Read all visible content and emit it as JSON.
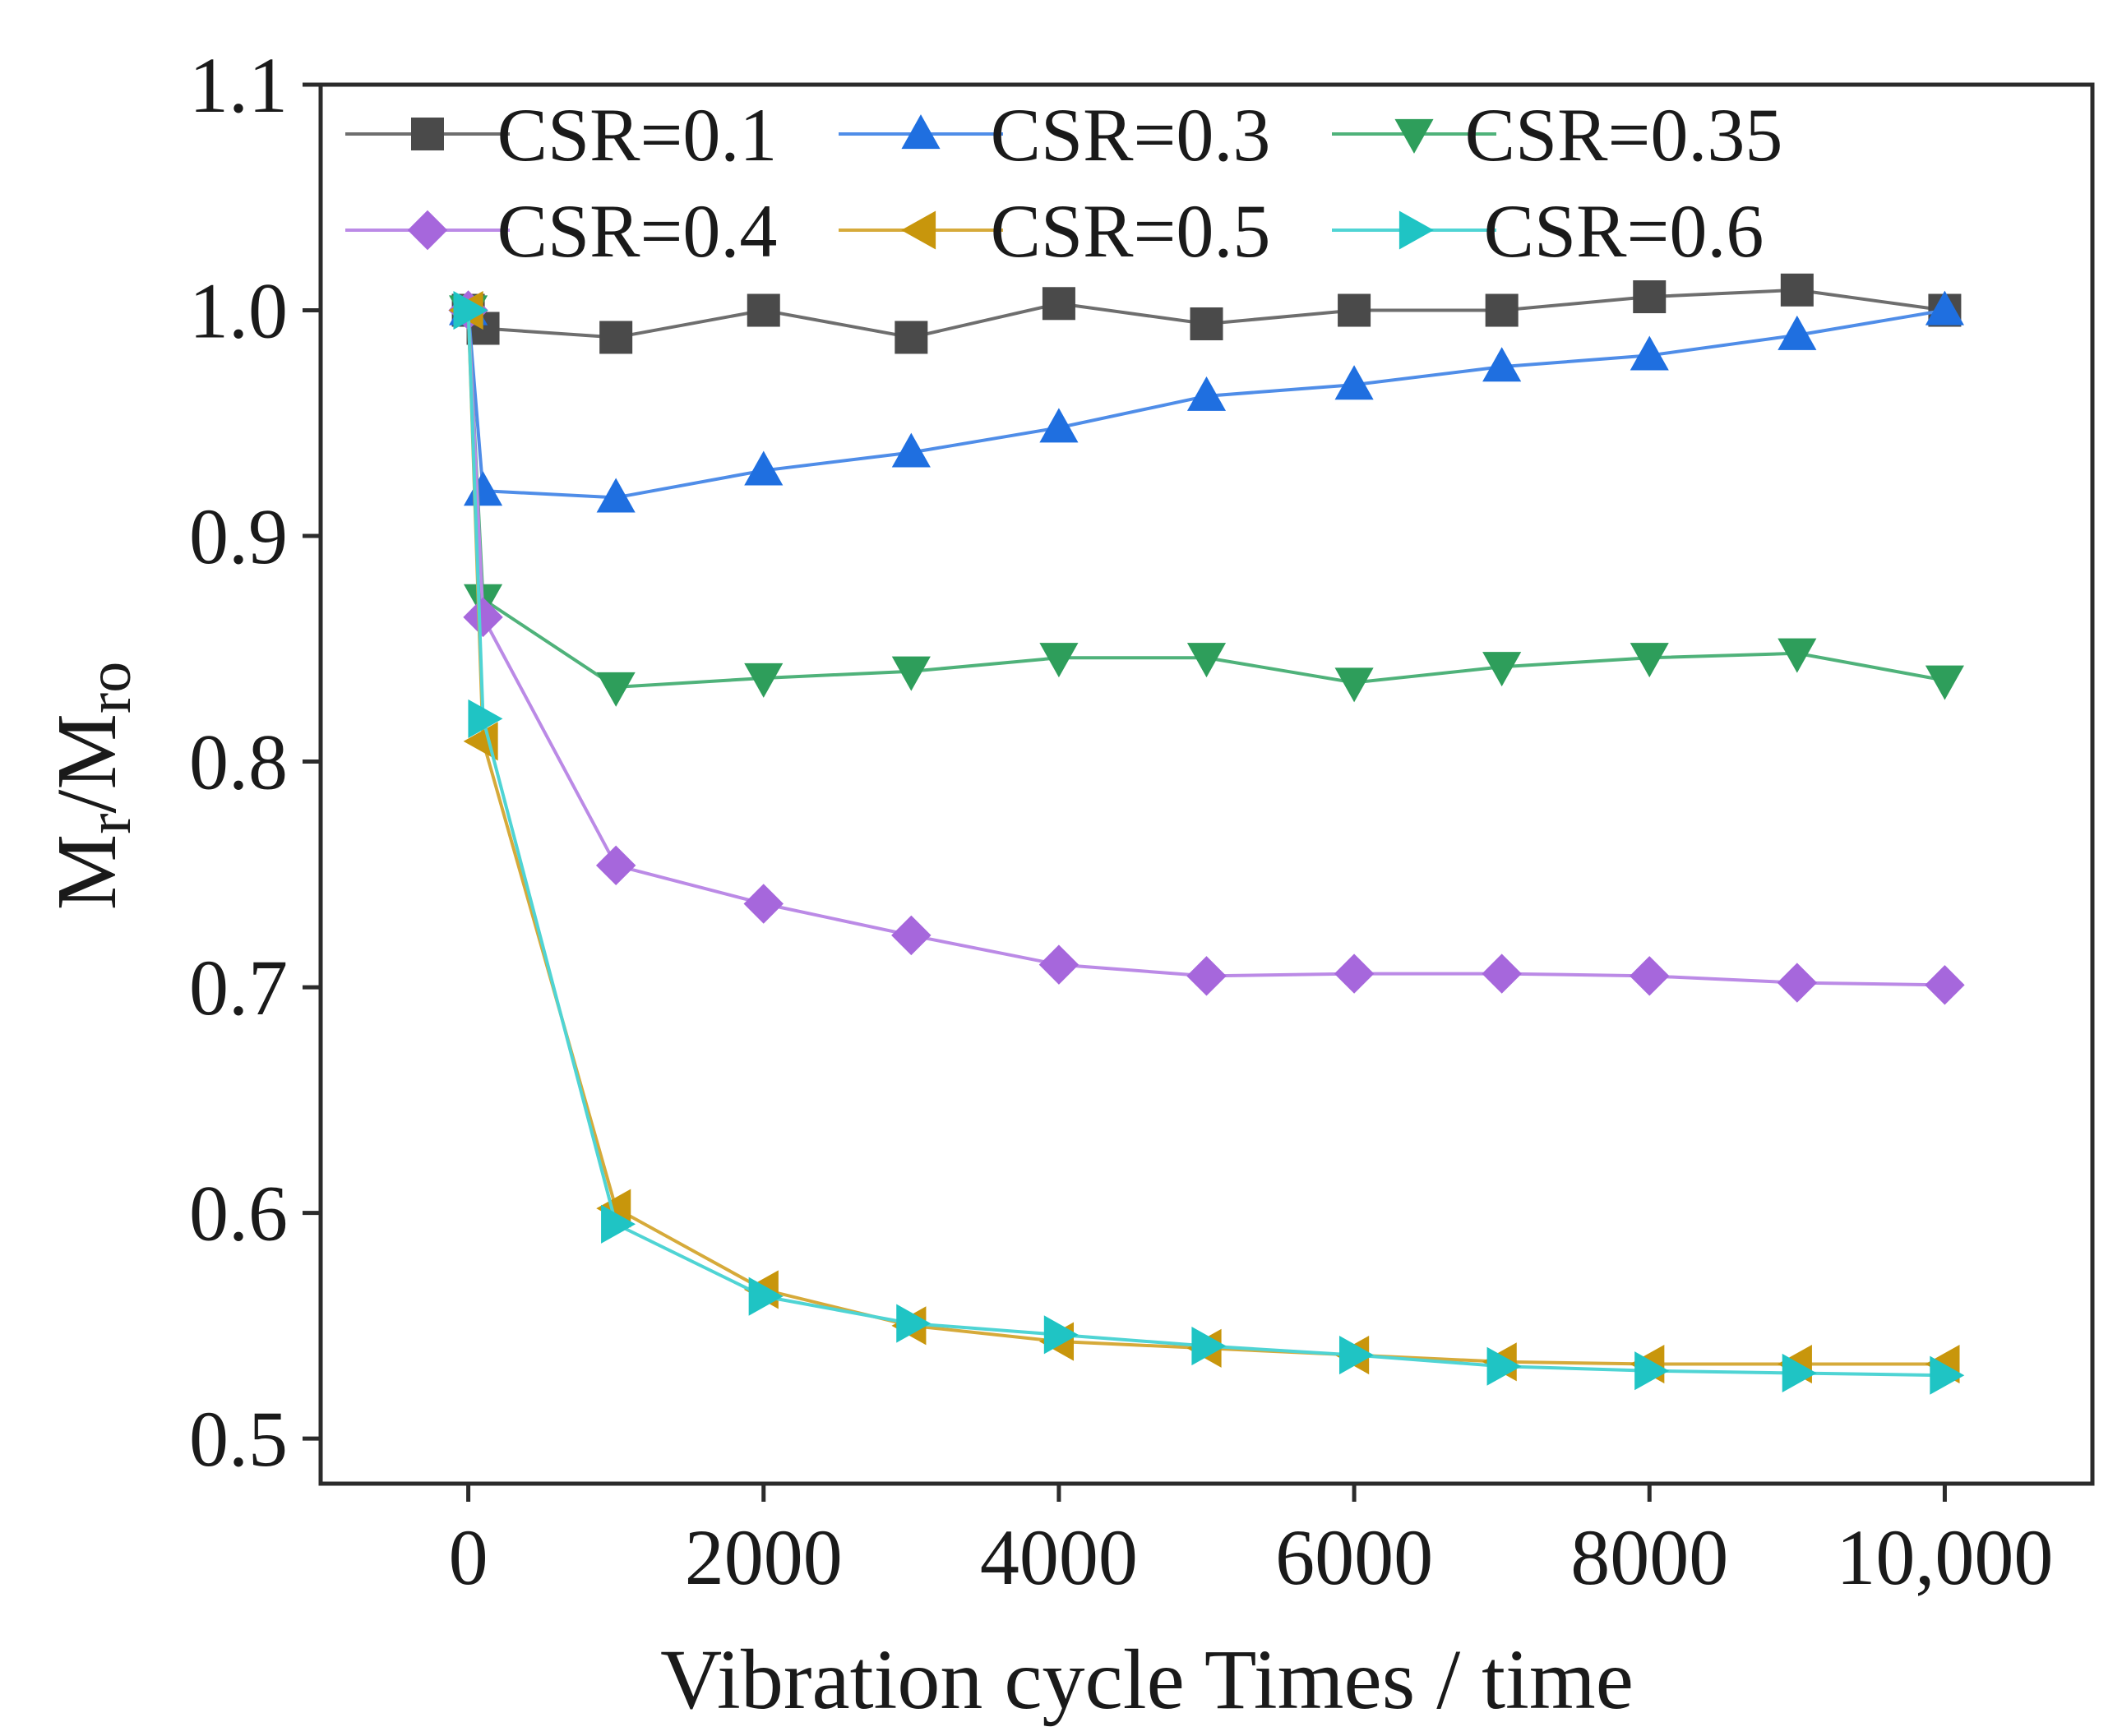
{
  "chart_data": {
    "type": "line",
    "title": "",
    "xlabel": "Vibration cycle Times / time",
    "ylabel_main": "M",
    "ylabel_sub1": "r",
    "ylabel_sep": "/M",
    "ylabel_sub2": "ro",
    "xlim": [
      -1000,
      11000
    ],
    "ylim": [
      0.48,
      1.1
    ],
    "x_ticks": [
      0,
      2000,
      4000,
      6000,
      8000,
      10000
    ],
    "x_tick_labels": [
      "0",
      "2000",
      "4000",
      "6000",
      "8000",
      "10,000"
    ],
    "y_ticks": [
      0.5,
      0.6,
      0.7,
      0.8,
      0.9,
      1.0,
      1.1
    ],
    "y_tick_labels": [
      "0.5",
      "0.6",
      "0.7",
      "0.8",
      "0.9",
      "1.0",
      "1.1"
    ],
    "grid": false,
    "legend_position": "top",
    "x": [
      0,
      100,
      1000,
      2000,
      3000,
      4000,
      5000,
      6000,
      7000,
      8000,
      9000,
      10000
    ],
    "series": [
      {
        "name": "CSR=0.1",
        "marker": "square",
        "color": "#4a4a4a",
        "line_color": "#6e6e6e",
        "values": [
          1.0,
          0.992,
          0.988,
          1.0,
          0.988,
          1.003,
          0.994,
          1.0,
          1.0,
          1.006,
          1.009,
          1.0
        ]
      },
      {
        "name": "CSR=0.3",
        "marker": "triangle-up",
        "color": "#1f6fe0",
        "line_color": "#4f8de8",
        "values": [
          1.0,
          0.92,
          0.917,
          0.929,
          0.937,
          0.948,
          0.962,
          0.967,
          0.975,
          0.98,
          0.989,
          1.0
        ]
      },
      {
        "name": "CSR=0.35",
        "marker": "triangle-down",
        "color": "#2e9e5b",
        "line_color": "#4fb27a",
        "values": [
          1.0,
          0.872,
          0.833,
          0.837,
          0.84,
          0.846,
          0.846,
          0.835,
          0.842,
          0.846,
          0.848,
          0.836
        ]
      },
      {
        "name": "CSR=0.4",
        "marker": "diamond",
        "color": "#a667dc",
        "line_color": "#bb8ae6",
        "values": [
          1.0,
          0.864,
          0.754,
          0.737,
          0.723,
          0.71,
          0.705,
          0.706,
          0.706,
          0.705,
          0.702,
          0.701
        ]
      },
      {
        "name": "CSR=0.5",
        "marker": "triangle-left",
        "color": "#c8960c",
        "line_color": "#d6aa3a",
        "values": [
          1.0,
          0.809,
          0.602,
          0.566,
          0.55,
          0.543,
          0.54,
          0.537,
          0.534,
          0.533,
          0.533,
          0.533
        ]
      },
      {
        "name": "CSR=0.6",
        "marker": "triangle-right",
        "color": "#1fc4c4",
        "line_color": "#4fd4d4",
        "values": [
          1.0,
          0.819,
          0.595,
          0.563,
          0.551,
          0.546,
          0.541,
          0.537,
          0.532,
          0.53,
          0.529,
          0.528
        ]
      }
    ]
  }
}
